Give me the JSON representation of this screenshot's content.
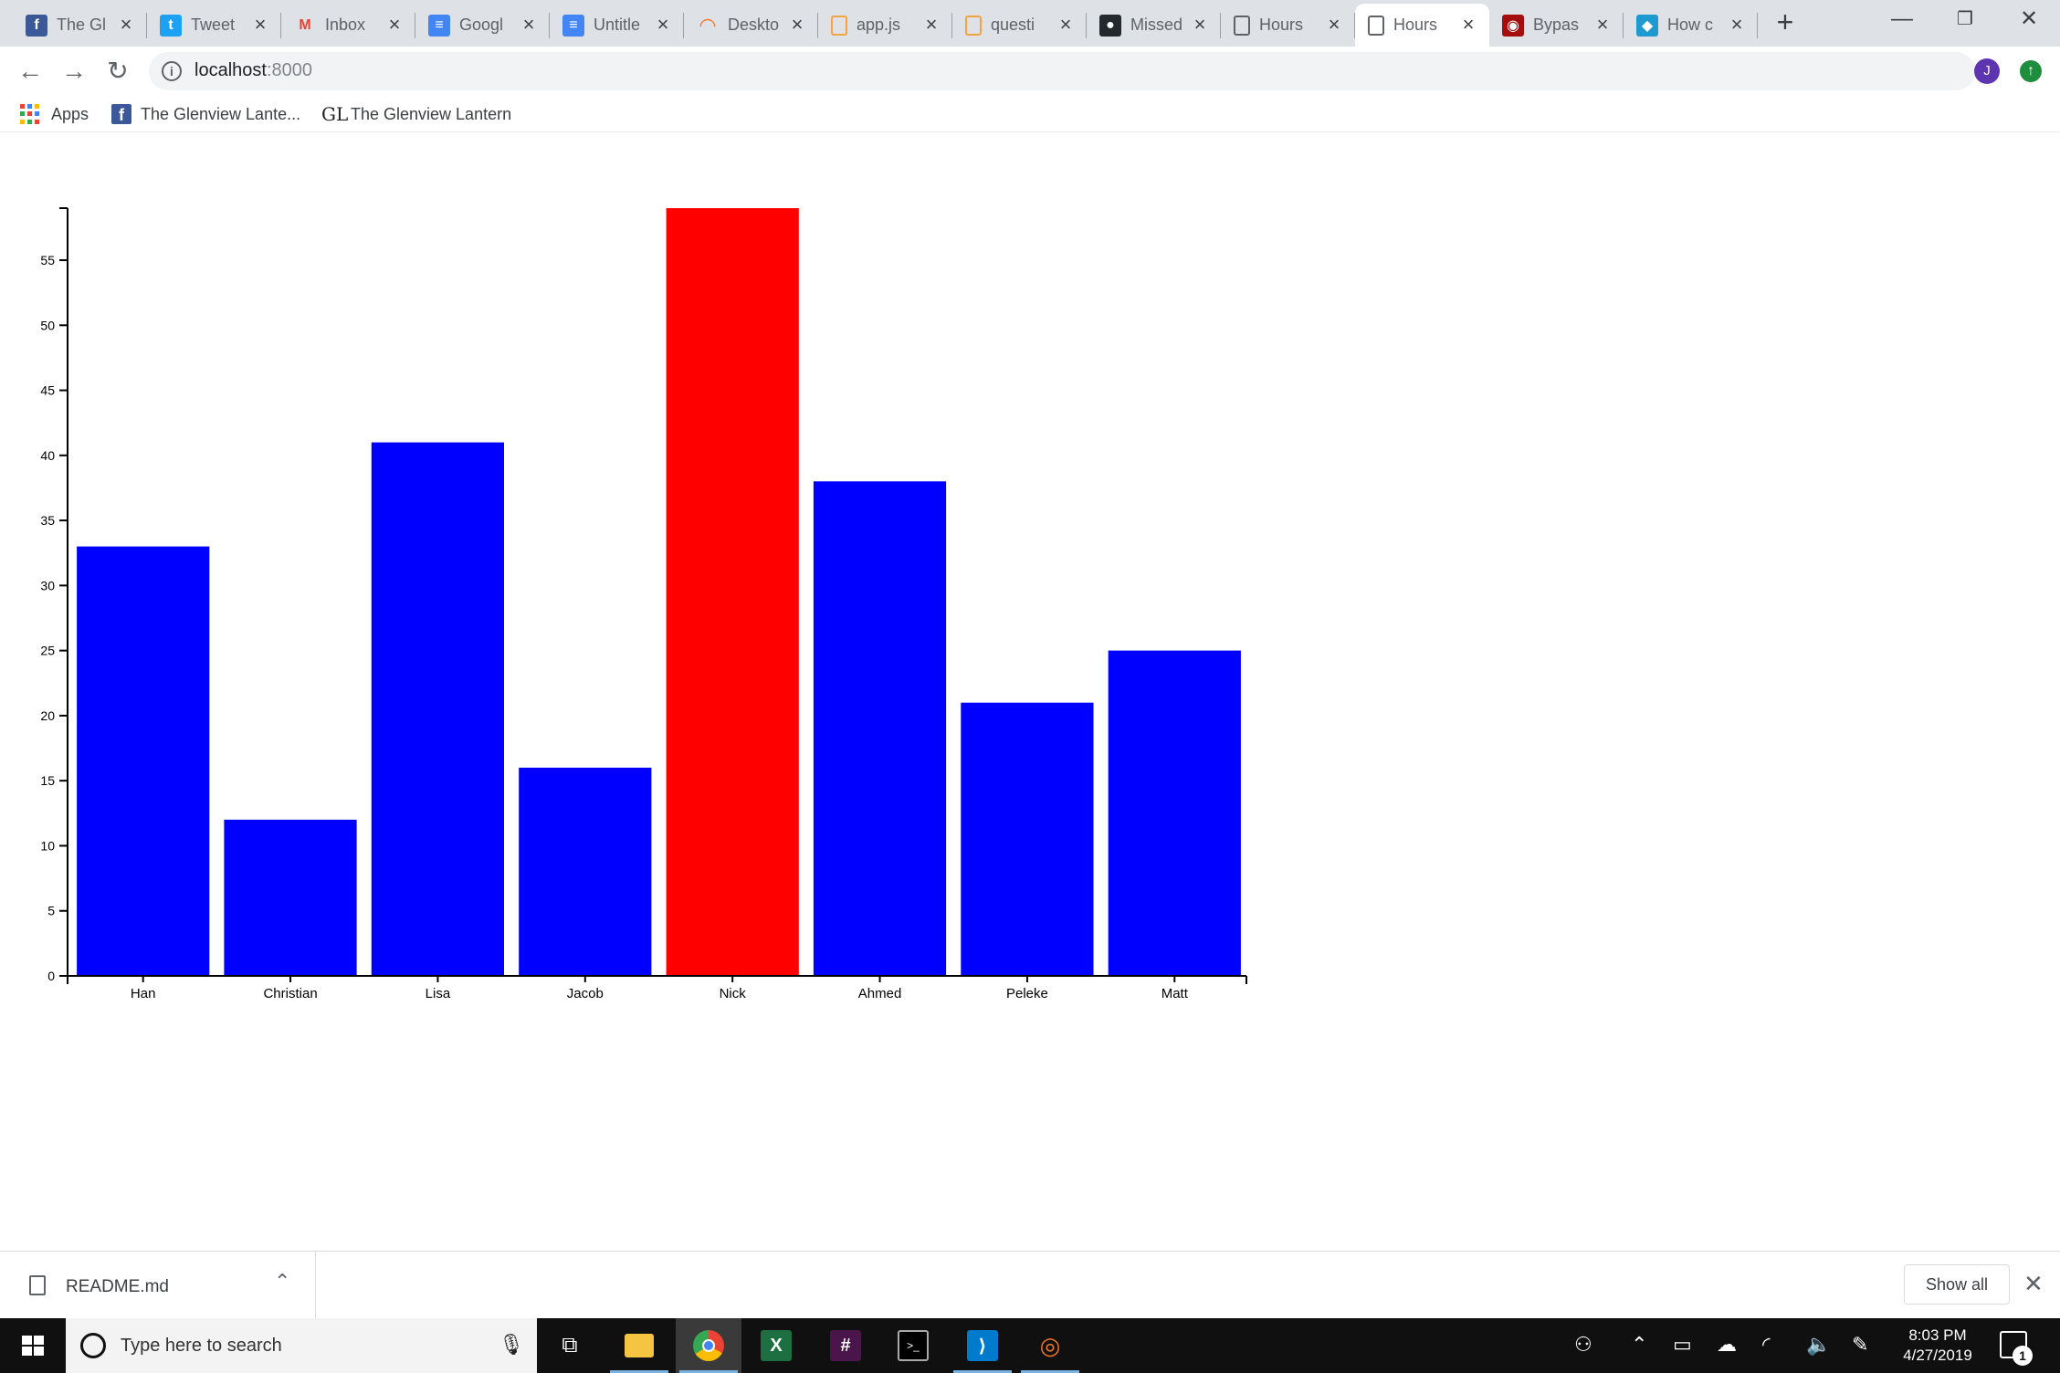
{
  "browser": {
    "tabs": [
      {
        "title": "The Gl",
        "icon": "facebook-icon",
        "color": "#3b5998",
        "glyph": "f"
      },
      {
        "title": "Tweet",
        "icon": "twitter-icon",
        "color": "#1da1f2",
        "glyph": "t"
      },
      {
        "title": "Inbox",
        "icon": "gmail-icon",
        "color": "#ffffff",
        "glyph": "M"
      },
      {
        "title": "Googl",
        "icon": "google-docs-icon",
        "color": "#4285f4",
        "glyph": "≡"
      },
      {
        "title": "Untitle",
        "icon": "google-docs-icon",
        "color": "#4285f4",
        "glyph": "≡"
      },
      {
        "title": "Deskto",
        "icon": "jupyter-icon",
        "color": "#f37626",
        "glyph": "◠"
      },
      {
        "title": "app.js",
        "icon": "file-icon",
        "color": "#f4a340",
        "glyph": ""
      },
      {
        "title": "questi",
        "icon": "file-icon",
        "color": "#f4a340",
        "glyph": ""
      },
      {
        "title": "Missed",
        "icon": "github-icon",
        "color": "#24292e",
        "glyph": "●"
      },
      {
        "title": "Hours",
        "icon": "page-icon",
        "color": "#5f6368",
        "glyph": ""
      },
      {
        "title": "Hours",
        "icon": "page-icon",
        "color": "#5f6368",
        "glyph": "",
        "active": true
      },
      {
        "title": "Bypas",
        "icon": "bypass-icon",
        "color": "#a50e0e",
        "glyph": "◉"
      },
      {
        "title": "How c",
        "icon": "question-site-icon",
        "color": "#1d9bd1",
        "glyph": "◆"
      }
    ],
    "url_host": "localhost",
    "url_port": ":8000",
    "avatar_initial": "J",
    "bookmarks": [
      {
        "label": "Apps"
      },
      {
        "label": "The Glenview Lante..."
      },
      {
        "label": "The Glenview Lantern"
      }
    ],
    "glenview_logo": "GL"
  },
  "chart_data": {
    "type": "bar",
    "categories": [
      "Han",
      "Christian",
      "Lisa",
      "Jacob",
      "Nick",
      "Ahmed",
      "Peleke",
      "Matt"
    ],
    "values": [
      33,
      12,
      41,
      16,
      59,
      38,
      21,
      25
    ],
    "bar_colors": [
      "#0000ff",
      "#0000ff",
      "#0000ff",
      "#0000ff",
      "#ff0000",
      "#0000ff",
      "#0000ff",
      "#0000ff"
    ],
    "y_ticks": [
      0,
      5,
      10,
      15,
      20,
      25,
      30,
      35,
      40,
      45,
      50,
      55
    ],
    "ylim": [
      0,
      59
    ],
    "title": "",
    "xlabel": "",
    "ylabel": "",
    "grid": false
  },
  "downloads": {
    "file_name": "README.md",
    "show_all_label": "Show all"
  },
  "taskbar": {
    "search_placeholder": "Type here to search",
    "time": "8:03 PM",
    "date": "4/27/2019",
    "notification_count": "1"
  }
}
